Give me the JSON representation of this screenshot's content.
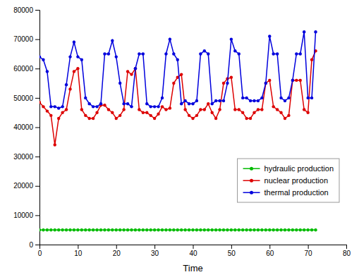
{
  "chart_data": {
    "type": "line",
    "xlabel": "Time",
    "x": [
      0,
      1,
      2,
      3,
      4,
      5,
      6,
      7,
      8,
      9,
      10,
      11,
      12,
      13,
      14,
      15,
      16,
      17,
      18,
      19,
      20,
      21,
      22,
      23,
      24,
      25,
      26,
      27,
      28,
      29,
      30,
      31,
      32,
      33,
      34,
      35,
      36,
      37,
      38,
      39,
      40,
      41,
      42,
      43,
      44,
      45,
      46,
      47,
      48,
      49,
      50,
      51,
      52,
      53,
      54,
      55,
      56,
      57,
      58,
      59,
      60,
      61,
      62,
      63,
      64,
      65,
      66,
      67,
      68,
      69,
      70,
      71,
      72
    ],
    "series": [
      {
        "name": "hydraulic production",
        "color": "#00bb00",
        "marker": "circle",
        "values": [
          5000,
          5000,
          5000,
          5000,
          5000,
          5000,
          5000,
          5000,
          5000,
          5000,
          5000,
          5000,
          5000,
          5000,
          5000,
          5000,
          5000,
          5000,
          5000,
          5000,
          5000,
          5000,
          5000,
          5000,
          5000,
          5000,
          5000,
          5000,
          5000,
          5000,
          5000,
          5000,
          5000,
          5000,
          5000,
          5000,
          5000,
          5000,
          5000,
          5000,
          5000,
          5000,
          5000,
          5000,
          5000,
          5000,
          5000,
          5000,
          5000,
          5000,
          5000,
          5000,
          5000,
          5000,
          5000,
          5000,
          5000,
          5000,
          5000,
          5000,
          5000,
          5000,
          5000,
          5000,
          5000,
          5000,
          5000,
          5000,
          5000,
          5000,
          5000,
          5000,
          5000
        ]
      },
      {
        "name": "nuclear production",
        "color": "#dd0000",
        "marker": "circle",
        "values": [
          48500,
          47000,
          45500,
          44000,
          34000,
          43000,
          45000,
          46000,
          53000,
          59000,
          60000,
          46000,
          44000,
          43000,
          43000,
          45000,
          47500,
          47500,
          46000,
          45000,
          43000,
          44000,
          46000,
          59000,
          58000,
          60000,
          46000,
          45000,
          45000,
          44000,
          43000,
          44500,
          47000,
          46000,
          46500,
          55000,
          57000,
          58000,
          46000,
          44000,
          43000,
          44000,
          46000,
          46000,
          48000,
          45000,
          43000,
          46000,
          55000,
          56500,
          57000,
          46000,
          46000,
          45000,
          43000,
          43000,
          45000,
          46000,
          46000,
          55000,
          56000,
          47000,
          46000,
          45000,
          43000,
          44000,
          56000,
          56000,
          56000,
          46000,
          45000,
          63000,
          66000
        ]
      },
      {
        "name": "thermal production",
        "color": "#0000dd",
        "marker": "circle",
        "values": [
          64000,
          63000,
          59000,
          47000,
          47000,
          46500,
          47000,
          54500,
          64000,
          69000,
          64000,
          63000,
          50000,
          48000,
          47000,
          47000,
          48000,
          65000,
          65000,
          69500,
          64000,
          55000,
          48000,
          48000,
          47000,
          60000,
          65000,
          65000,
          48000,
          47000,
          47000,
          47000,
          50000,
          65000,
          70000,
          65000,
          63000,
          48000,
          49000,
          48000,
          48000,
          49000,
          65000,
          66000,
          65000,
          48000,
          49000,
          49000,
          49000,
          55000,
          70000,
          66000,
          65000,
          50000,
          50000,
          49000,
          49000,
          49000,
          50000,
          55000,
          71000,
          65000,
          65000,
          50000,
          49000,
          50000,
          56000,
          65000,
          65000,
          72500,
          50000,
          50000,
          72500
        ]
      }
    ],
    "xlim": [
      0,
      80
    ],
    "ylim": [
      0,
      80000
    ],
    "xticks": [
      0,
      10,
      20,
      30,
      40,
      50,
      60,
      70,
      80
    ],
    "yticks": [
      0,
      10000,
      20000,
      30000,
      40000,
      50000,
      60000,
      70000,
      80000
    ],
    "grid": false,
    "legend": "lower right"
  }
}
